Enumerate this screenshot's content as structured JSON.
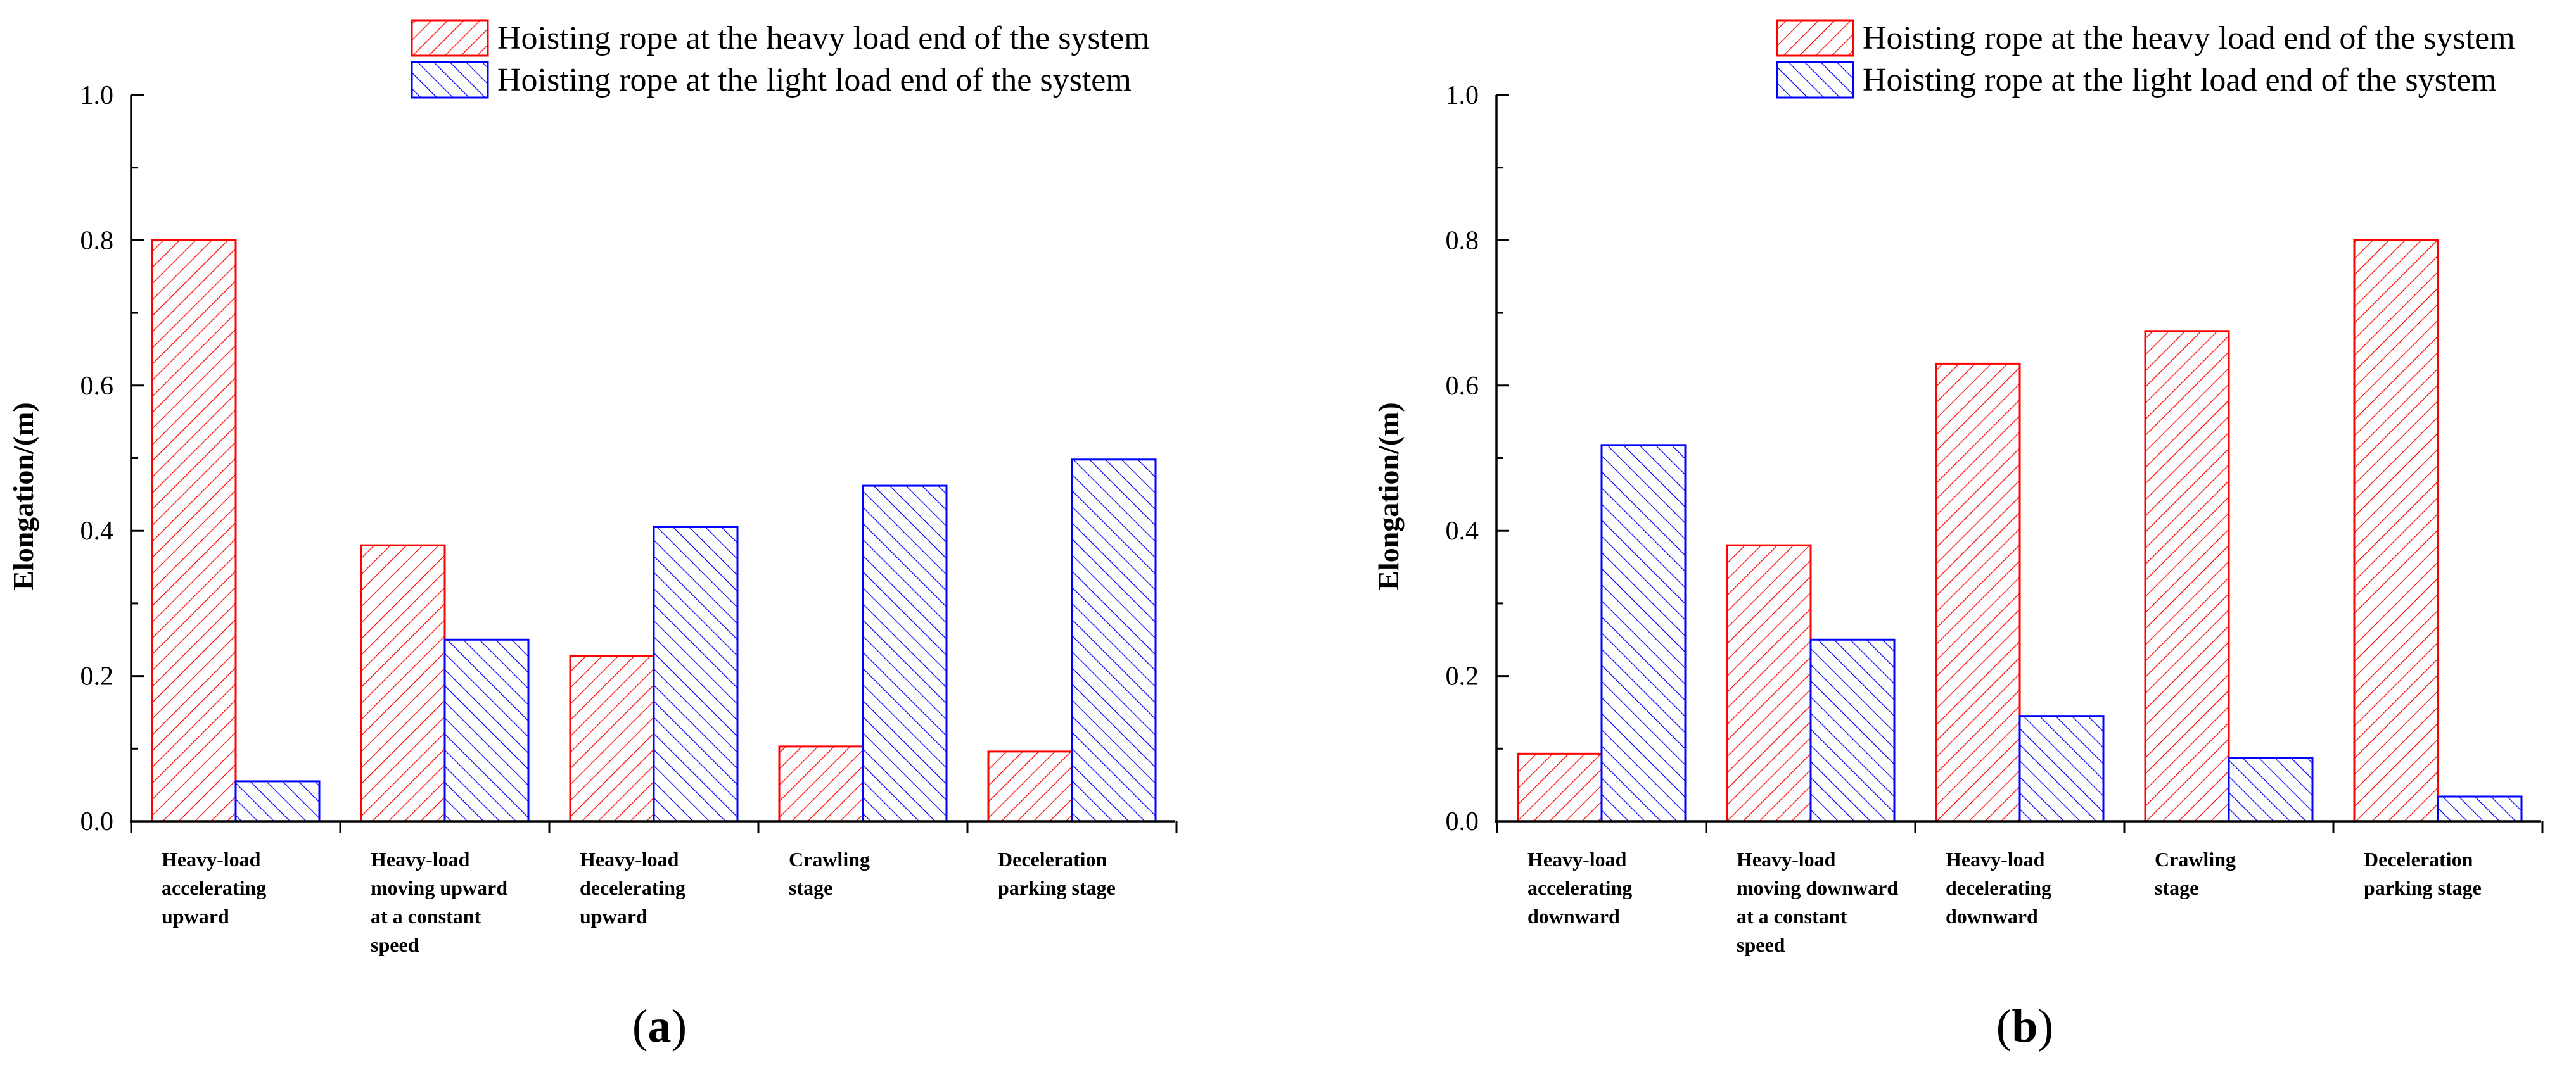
{
  "colors": {
    "heavy": "#ff0000",
    "light": "#0000ff",
    "axis": "#000000"
  },
  "chart_data": [
    {
      "type": "bar",
      "panel": "(a)",
      "panel_prefix": "(",
      "panel_letter": "a",
      "panel_suffix": ")",
      "ylabel": "Elongation/(m)",
      "xlabel": "",
      "ylim": [
        0,
        1.0
      ],
      "yticks": [
        "0.0",
        "0.2",
        "0.4",
        "0.6",
        "0.8",
        "1.0"
      ],
      "legend_position": "top-right",
      "categories": [
        [
          "Heavy-load",
          "accelerating",
          "upward"
        ],
        [
          "Heavy-load",
          "moving upward",
          "at a constant",
          "speed"
        ],
        [
          "Heavy-load",
          "decelerating",
          "upward"
        ],
        [
          "Crawling",
          "stage"
        ],
        [
          "Deceleration",
          "parking stage"
        ]
      ],
      "series": [
        {
          "name": "Hoisting rope at the heavy load end of the system",
          "color": "heavy",
          "hatch": "forward",
          "values": [
            0.8,
            0.38,
            0.228,
            0.103,
            0.096
          ]
        },
        {
          "name": "Hoisting rope at the light load end of the system",
          "color": "light",
          "hatch": "back",
          "values": [
            0.055,
            0.25,
            0.405,
            0.462,
            0.498
          ]
        }
      ]
    },
    {
      "type": "bar",
      "panel": "(b)",
      "panel_prefix": "(",
      "panel_letter": "b",
      "panel_suffix": ")",
      "ylabel": "Elongation/(m)",
      "xlabel": "",
      "ylim": [
        0,
        1.0
      ],
      "yticks": [
        "0.0",
        "0.2",
        "0.4",
        "0.6",
        "0.8",
        "1.0"
      ],
      "legend_position": "top-right",
      "categories": [
        [
          "Heavy-load",
          "accelerating",
          "downward"
        ],
        [
          "Heavy-load",
          "moving downward",
          "at a constant",
          "speed"
        ],
        [
          "Heavy-load",
          "decelerating",
          "downward"
        ],
        [
          "Crawling",
          "stage"
        ],
        [
          "Deceleration",
          "parking stage"
        ]
      ],
      "series": [
        {
          "name": "Hoisting rope at the heavy load end of the system",
          "color": "heavy",
          "hatch": "forward",
          "values": [
            0.093,
            0.38,
            0.63,
            0.675,
            0.8
          ]
        },
        {
          "name": "Hoisting rope at the light load end of the system",
          "color": "light",
          "hatch": "back",
          "values": [
            0.518,
            0.25,
            0.145,
            0.087,
            0.034
          ]
        }
      ]
    }
  ]
}
